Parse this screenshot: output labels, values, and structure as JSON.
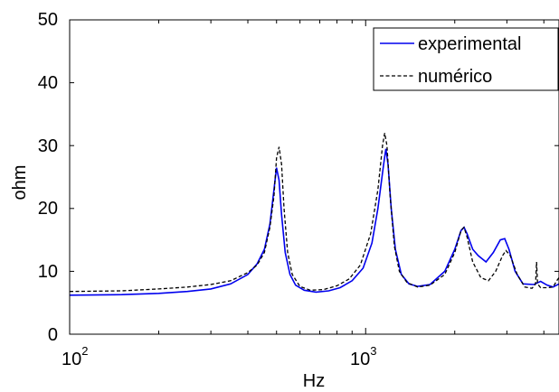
{
  "chart_data": {
    "type": "line",
    "xlabel": "Hz",
    "ylabel": "ohm",
    "xscale": "log",
    "xlim": [
      100,
      4500
    ],
    "ylim": [
      0,
      50
    ],
    "yticks": [
      0,
      10,
      20,
      30,
      40,
      50
    ],
    "xticks": [
      {
        "value": 100,
        "base": "10",
        "exp": "2"
      },
      {
        "value": 1000,
        "base": "10",
        "exp": "3"
      }
    ],
    "grid": false,
    "legend": "top-right",
    "series": [
      {
        "name": "experimental",
        "color": "#0000ee",
        "style": "solid",
        "points": [
          [
            100,
            6.2
          ],
          [
            150,
            6.3
          ],
          [
            200,
            6.5
          ],
          [
            250,
            6.8
          ],
          [
            300,
            7.2
          ],
          [
            350,
            8.0
          ],
          [
            400,
            9.5
          ],
          [
            430,
            11.2
          ],
          [
            455,
            13.5
          ],
          [
            475,
            17.5
          ],
          [
            490,
            23.0
          ],
          [
            500,
            26.5
          ],
          [
            510,
            24.5
          ],
          [
            520,
            19.0
          ],
          [
            535,
            13.0
          ],
          [
            555,
            9.5
          ],
          [
            580,
            7.8
          ],
          [
            620,
            7.0
          ],
          [
            680,
            6.7
          ],
          [
            750,
            6.9
          ],
          [
            820,
            7.4
          ],
          [
            900,
            8.5
          ],
          [
            980,
            10.5
          ],
          [
            1050,
            14.5
          ],
          [
            1100,
            20.0
          ],
          [
            1150,
            27.0
          ],
          [
            1170,
            29.5
          ],
          [
            1190,
            27.0
          ],
          [
            1220,
            20.0
          ],
          [
            1260,
            13.5
          ],
          [
            1320,
            9.5
          ],
          [
            1400,
            8.0
          ],
          [
            1500,
            7.6
          ],
          [
            1650,
            7.9
          ],
          [
            1850,
            10.0
          ],
          [
            2000,
            13.5
          ],
          [
            2100,
            16.5
          ],
          [
            2150,
            17.0
          ],
          [
            2200,
            16.0
          ],
          [
            2300,
            13.5
          ],
          [
            2400,
            12.5
          ],
          [
            2550,
            11.5
          ],
          [
            2700,
            13.0
          ],
          [
            2850,
            15.0
          ],
          [
            2950,
            15.2
          ],
          [
            3050,
            13.5
          ],
          [
            3200,
            10.0
          ],
          [
            3400,
            8.0
          ],
          [
            3700,
            7.9
          ],
          [
            3900,
            8.4
          ],
          [
            4100,
            7.8
          ],
          [
            4300,
            7.5
          ],
          [
            4500,
            8.0
          ]
        ]
      },
      {
        "name": "numérico",
        "color": "#000000",
        "style": "dashed",
        "points": [
          [
            100,
            6.8
          ],
          [
            150,
            6.9
          ],
          [
            200,
            7.2
          ],
          [
            250,
            7.5
          ],
          [
            300,
            7.9
          ],
          [
            350,
            8.5
          ],
          [
            400,
            9.8
          ],
          [
            430,
            11.0
          ],
          [
            455,
            13.0
          ],
          [
            475,
            17.0
          ],
          [
            490,
            22.0
          ],
          [
            500,
            28.0
          ],
          [
            510,
            29.8
          ],
          [
            520,
            27.0
          ],
          [
            530,
            20.0
          ],
          [
            545,
            13.0
          ],
          [
            565,
            9.5
          ],
          [
            600,
            7.6
          ],
          [
            650,
            7.0
          ],
          [
            720,
            7.1
          ],
          [
            800,
            7.7
          ],
          [
            880,
            8.8
          ],
          [
            960,
            11.0
          ],
          [
            1040,
            16.0
          ],
          [
            1100,
            23.0
          ],
          [
            1140,
            30.0
          ],
          [
            1160,
            32.0
          ],
          [
            1180,
            30.0
          ],
          [
            1210,
            22.0
          ],
          [
            1250,
            14.0
          ],
          [
            1300,
            10.0
          ],
          [
            1380,
            8.2
          ],
          [
            1500,
            7.5
          ],
          [
            1650,
            7.8
          ],
          [
            1850,
            9.5
          ],
          [
            2000,
            13.0
          ],
          [
            2100,
            16.5
          ],
          [
            2150,
            17.0
          ],
          [
            2200,
            15.5
          ],
          [
            2300,
            11.5
          ],
          [
            2450,
            9.0
          ],
          [
            2600,
            8.5
          ],
          [
            2750,
            10.0
          ],
          [
            2900,
            12.5
          ],
          [
            2980,
            13.3
          ],
          [
            3080,
            12.5
          ],
          [
            3250,
            9.5
          ],
          [
            3450,
            7.5
          ],
          [
            3650,
            7.3
          ],
          [
            3750,
            8.0
          ],
          [
            3780,
            11.5
          ],
          [
            3810,
            8.0
          ],
          [
            3900,
            7.4
          ],
          [
            4100,
            7.4
          ],
          [
            4300,
            7.5
          ],
          [
            4420,
            8.5
          ],
          [
            4500,
            9.0
          ]
        ]
      }
    ]
  }
}
